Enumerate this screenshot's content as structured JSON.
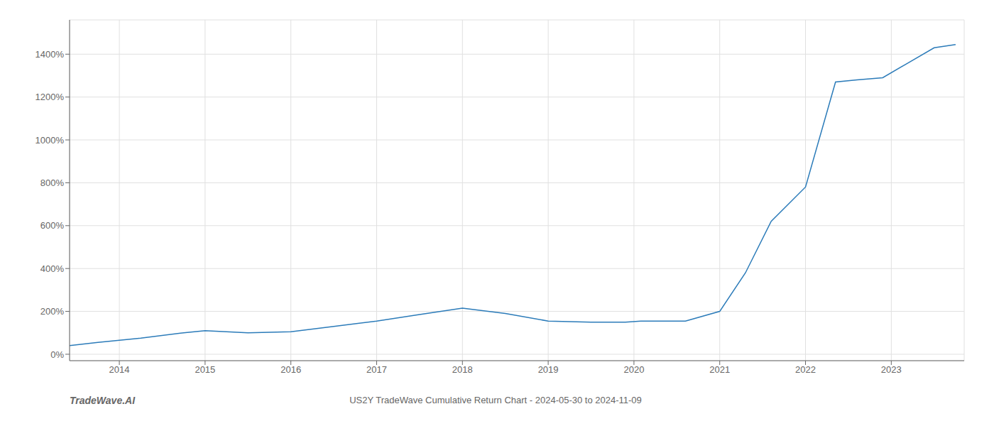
{
  "chart_data": {
    "type": "line",
    "title": "US2Y TradeWave Cumulative Return Chart - 2024-05-30 to 2024-11-09",
    "annotations": [
      "TradeWave.AI"
    ],
    "x": [
      2013.42,
      2013.75,
      2014.25,
      2014.75,
      2015.0,
      2015.5,
      2016.0,
      2016.5,
      2017.0,
      2017.5,
      2018.0,
      2018.5,
      2019.0,
      2019.5,
      2019.9,
      2020.08,
      2020.3,
      2020.6,
      2021.0,
      2021.3,
      2021.6,
      2022.0,
      2022.35,
      2022.6,
      2022.9,
      2023.2,
      2023.5,
      2023.75
    ],
    "values": [
      40,
      55,
      75,
      100,
      110,
      100,
      105,
      130,
      155,
      185,
      215,
      190,
      155,
      150,
      150,
      155,
      155,
      155,
      200,
      380,
      620,
      780,
      1270,
      1280,
      1290,
      1360,
      1430,
      1445
    ],
    "color": "#2B7BB9",
    "xlim": [
      2013.42,
      2023.85
    ],
    "ylim": [
      -30,
      1560
    ],
    "xticks": [
      2014,
      2015,
      2016,
      2017,
      2018,
      2019,
      2020,
      2021,
      2022,
      2023
    ],
    "yticks": [
      {
        "value": 0,
        "label": "0%"
      },
      {
        "value": 200,
        "label": "200%"
      },
      {
        "value": 400,
        "label": "400%"
      },
      {
        "value": 600,
        "label": "600%"
      },
      {
        "value": 800,
        "label": "800%"
      },
      {
        "value": 1000,
        "label": "1000%"
      },
      {
        "value": 1200,
        "label": "1200%"
      },
      {
        "value": 1400,
        "label": "1400%"
      }
    ],
    "grid": true
  }
}
